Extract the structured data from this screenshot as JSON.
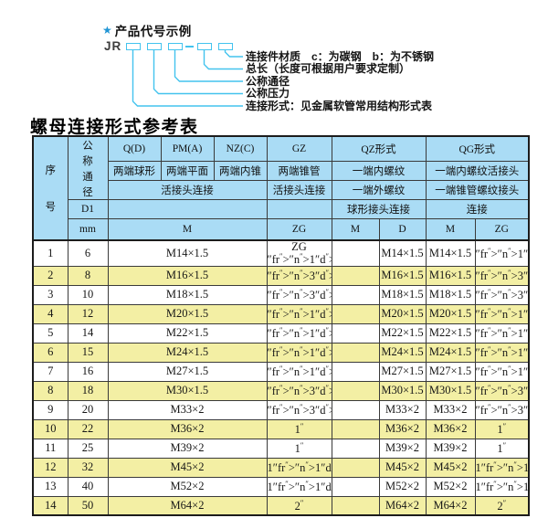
{
  "diagram": {
    "star": "★",
    "example_title": "产品代号示例",
    "code_prefix": "JR",
    "labels": [
      "连接件材质　c：为碳钢　b：为不锈钢",
      "总长（长度可根据用户要求定制）",
      "公称通径",
      "公称压力",
      "连接形式：见金属软管常用结构形式表"
    ],
    "line_color": "#43c3ee",
    "star_color": "#2095d5"
  },
  "table": {
    "title": "螺母连接形式参考表",
    "colors": {
      "header_bg": "#aadcf5",
      "row_alt_bg": "#f3efa4",
      "row_bg": "#ffffff",
      "border": "#3a3a3a"
    },
    "header": {
      "seq": "序号",
      "dn": "公称通径",
      "d1": "D1",
      "mm": "mm",
      "top": [
        "Q(D)",
        "PM(A)",
        "NZ(C)",
        "GZ",
        "QZ形式",
        "QG形式"
      ],
      "row2": [
        "两端球形",
        "两端平面",
        "两端内锥",
        "两端锥管",
        "一端内螺纹",
        "一端内螺纹活接头"
      ],
      "row3": [
        "活接头连接",
        "活接头连接",
        "一端外螺纹",
        "一端锥管螺纹接头"
      ],
      "row4": [
        "球形接头连接",
        "连接"
      ],
      "row5": [
        "M",
        "ZG",
        "M",
        "D",
        "M",
        "ZG"
      ]
    },
    "rows": [
      {
        "seq": "1",
        "dn": "6",
        "m": "M14×1.5",
        "gz": "ZG {1/4}\"",
        "qz_m": "",
        "qz_d": "M14×1.5",
        "qg_m": "M14×1.5",
        "qg_zg": "{1/4}\""
      },
      {
        "seq": "2",
        "dn": "8",
        "m": "M16×1.5",
        "gz": "{3/8}\"",
        "qz_m": "",
        "qz_d": "M16×1.5",
        "qg_m": "M16×1.5",
        "qg_zg": "{3/8}\""
      },
      {
        "seq": "3",
        "dn": "10",
        "m": "M18×1.5",
        "gz": "{3/8}\"",
        "qz_m": "",
        "qz_d": "M18×1.5",
        "qg_m": "M18×1.5",
        "qg_zg": "{3/8}\""
      },
      {
        "seq": "4",
        "dn": "12",
        "m": "M20×1.5",
        "gz": "{1/2}\"",
        "qz_m": "",
        "qz_d": "M20×1.5",
        "qg_m": "M20×1.5",
        "qg_zg": "{1/2}\""
      },
      {
        "seq": "5",
        "dn": "14",
        "m": "M22×1.5",
        "gz": "{1/2}\"",
        "qz_m": "",
        "qz_d": "M22×1.5",
        "qg_m": "M22×1.5",
        "qg_zg": "{1/2}\""
      },
      {
        "seq": "6",
        "dn": "15",
        "m": "M24×1.5",
        "gz": "{1/2}\"",
        "qz_m": "",
        "qz_d": "M24×1.5",
        "qg_m": "M24×1.5",
        "qg_zg": "{1/2}\""
      },
      {
        "seq": "7",
        "dn": "16",
        "m": "M27×1.5",
        "gz": "{1/2}\"",
        "qz_m": "",
        "qz_d": "M27×1.5",
        "qg_m": "M27×1.5",
        "qg_zg": "{1/2}\""
      },
      {
        "seq": "8",
        "dn": "18",
        "m": "M30×1.5",
        "gz": "{3/4}\"",
        "qz_m": "",
        "qz_d": "M30×1.5",
        "qg_m": "M30×1.5",
        "qg_zg": "{3/4}\""
      },
      {
        "seq": "9",
        "dn": "20",
        "m": "M33×2",
        "gz": "{3/4}\"",
        "qz_m": "",
        "qz_d": "M33×2",
        "qg_m": "M33×2",
        "qg_zg": "{3/4}\""
      },
      {
        "seq": "10",
        "dn": "22",
        "m": "M36×2",
        "gz": "1\"",
        "qz_m": "",
        "qz_d": "M36×2",
        "qg_m": "M36×2",
        "qg_zg": "1\""
      },
      {
        "seq": "11",
        "dn": "25",
        "m": "M39×2",
        "gz": "1\"",
        "qz_m": "",
        "qz_d": "M39×2",
        "qg_m": "M39×2",
        "qg_zg": "1\""
      },
      {
        "seq": "12",
        "dn": "32",
        "m": "M45×2",
        "gz": "1{1/4}\"",
        "qz_m": "",
        "qz_d": "M45×2",
        "qg_m": "M45×2",
        "qg_zg": "1{1/4}\""
      },
      {
        "seq": "13",
        "dn": "40",
        "m": "M52×2",
        "gz": "1{1/2}\"",
        "qz_m": "",
        "qz_d": "M52×2",
        "qg_m": "M52×2",
        "qg_zg": "1{1/2}\""
      },
      {
        "seq": "14",
        "dn": "50",
        "m": "M64×2",
        "gz": "2\"",
        "qz_m": "",
        "qz_d": "M64×2",
        "qg_m": "M64×2",
        "qg_zg": "2\""
      }
    ]
  }
}
